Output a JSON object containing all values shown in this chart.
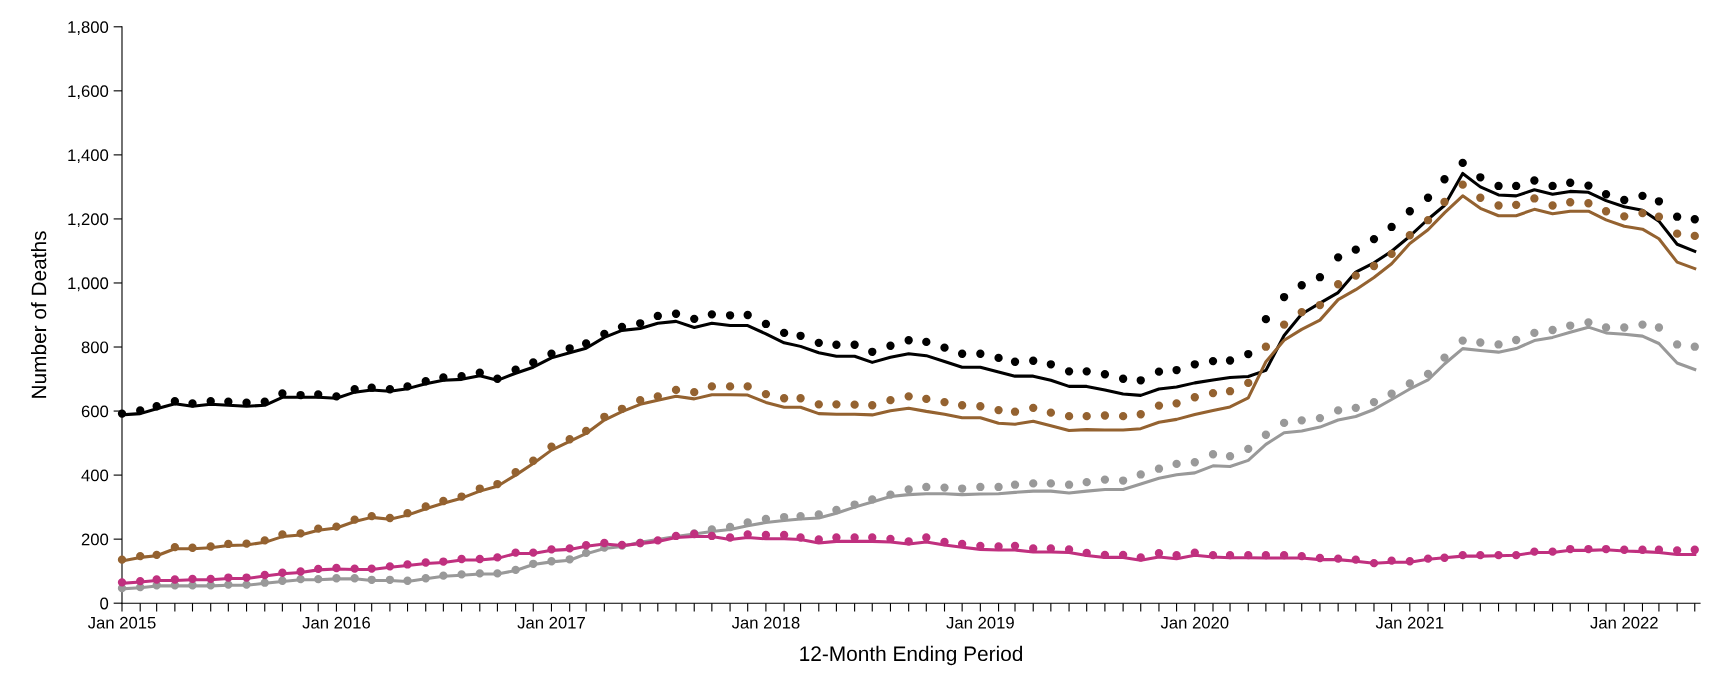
{
  "chart_data": {
    "type": "line",
    "xlabel": "12-Month Ending Period",
    "ylabel": "Number of Deaths",
    "x": [
      "2015-01",
      "2015-02",
      "2015-03",
      "2015-04",
      "2015-05",
      "2015-06",
      "2015-07",
      "2015-08",
      "2015-09",
      "2015-10",
      "2015-11",
      "2015-12",
      "2016-01",
      "2016-02",
      "2016-03",
      "2016-04",
      "2016-05",
      "2016-06",
      "2016-07",
      "2016-08",
      "2016-09",
      "2016-10",
      "2016-11",
      "2016-12",
      "2017-01",
      "2017-02",
      "2017-03",
      "2017-04",
      "2017-05",
      "2017-06",
      "2017-07",
      "2017-08",
      "2017-09",
      "2017-10",
      "2017-11",
      "2017-12",
      "2018-01",
      "2018-02",
      "2018-03",
      "2018-04",
      "2018-05",
      "2018-06",
      "2018-07",
      "2018-08",
      "2018-09",
      "2018-10",
      "2018-11",
      "2018-12",
      "2019-01",
      "2019-02",
      "2019-03",
      "2019-04",
      "2019-05",
      "2019-06",
      "2019-07",
      "2019-08",
      "2019-09",
      "2019-10",
      "2019-11",
      "2019-12",
      "2020-01",
      "2020-02",
      "2020-03",
      "2020-04",
      "2020-05",
      "2020-06",
      "2020-07",
      "2020-08",
      "2020-09",
      "2020-10",
      "2020-11",
      "2020-12",
      "2021-01",
      "2021-02",
      "2021-03",
      "2021-04",
      "2021-05",
      "2021-06",
      "2021-07",
      "2021-08",
      "2021-09",
      "2021-10",
      "2021-11",
      "2021-12",
      "2022-01",
      "2022-02",
      "2022-03",
      "2022-04",
      "2022-05"
    ],
    "series": [
      {
        "color": "#000000",
        "line_style": "solid",
        "values": [
          588,
          592,
          607,
          623,
          615,
          621,
          618,
          615,
          618,
          643,
          643,
          643,
          640,
          659,
          666,
          662,
          670,
          685,
          696,
          699,
          710,
          696,
          718,
          737,
          766,
          782,
          796,
          830,
          852,
          858,
          874,
          880,
          861,
          874,
          867,
          867,
          841,
          813,
          802,
          782,
          771,
          771,
          752,
          768,
          779,
          773,
          755,
          737,
          737,
          722,
          709,
          709,
          696,
          677,
          677,
          666,
          653,
          649,
          669,
          675,
          688,
          697,
          705,
          708,
          727,
          836,
          903,
          937,
          970,
          1034,
          1063,
          1099,
          1146,
          1199,
          1242,
          1342,
          1300,
          1275,
          1272,
          1291,
          1277,
          1286,
          1283,
          1257,
          1238,
          1227,
          1193,
          1121,
          1099
        ]
      },
      {
        "color": "#946230",
        "line_style": "solid",
        "values": [
          132,
          143,
          148,
          170,
          170,
          173,
          180,
          182,
          190,
          208,
          213,
          228,
          235,
          255,
          268,
          262,
          275,
          295,
          312,
          328,
          350,
          365,
          400,
          436,
          478,
          505,
          530,
          572,
          598,
          621,
          634,
          646,
          638,
          651,
          651,
          650,
          627,
          612,
          612,
          592,
          590,
          590,
          588,
          601,
          609,
          599,
          590,
          579,
          579,
          562,
          559,
          568,
          554,
          539,
          542,
          541,
          541,
          545,
          565,
          574,
          589,
          602,
          613,
          641,
          754,
          821,
          855,
          884,
          948,
          979,
          1017,
          1060,
          1123,
          1166,
          1219,
          1272,
          1233,
          1210,
          1210,
          1230,
          1216,
          1224,
          1224,
          1197,
          1177,
          1168,
          1138,
          1065,
          1045
        ]
      },
      {
        "color": "#999999",
        "line_style": "solid",
        "values": [
          45,
          48,
          54,
          54,
          54,
          54,
          56,
          56,
          62,
          68,
          73,
          73,
          76,
          76,
          71,
          71,
          68,
          76,
          84,
          87,
          91,
          91,
          102,
          121,
          129,
          134,
          154,
          171,
          177,
          190,
          199,
          208,
          216,
          224,
          230,
          242,
          252,
          258,
          263,
          266,
          281,
          300,
          316,
          333,
          339,
          342,
          342,
          339,
          341,
          342,
          346,
          350,
          350,
          344,
          350,
          355,
          355,
          372,
          390,
          401,
          407,
          429,
          427,
          446,
          496,
          532,
          538,
          550,
          572,
          583,
          605,
          636,
          669,
          697,
          747,
          795,
          789,
          784,
          795,
          820,
          830,
          846,
          862,
          844,
          840,
          834,
          811,
          750,
          730
        ]
      },
      {
        "color": "#c0307f",
        "line_style": "solid",
        "values": [
          62,
          66,
          71,
          71,
          73,
          73,
          77,
          77,
          85,
          92,
          96,
          104,
          107,
          105,
          105,
          112,
          118,
          124,
          127,
          135,
          135,
          140,
          155,
          155,
          165,
          168,
          178,
          185,
          180,
          186,
          193,
          205,
          208,
          208,
          199,
          205,
          201,
          201,
          199,
          188,
          193,
          193,
          193,
          191,
          185,
          191,
          182,
          175,
          168,
          166,
          166,
          160,
          160,
          158,
          149,
          143,
          143,
          134,
          144,
          139,
          150,
          144,
          142,
          142,
          141,
          141,
          141,
          136,
          136,
          131,
          125,
          128,
          128,
          137,
          142,
          147,
          147,
          148,
          150,
          158,
          158,
          165,
          165,
          167,
          163,
          161,
          158,
          152,
          152
        ]
      },
      {
        "type": "scatter",
        "color": "#000000",
        "marker": "circle",
        "values": [
          592,
          602,
          615,
          631,
          624,
          631,
          629,
          626,
          629,
          655,
          650,
          652,
          646,
          668,
          673,
          668,
          677,
          693,
          705,
          709,
          720,
          701,
          729,
          752,
          779,
          796,
          811,
          841,
          863,
          874,
          897,
          904,
          888,
          902,
          899,
          900,
          872,
          844,
          835,
          813,
          807,
          807,
          785,
          804,
          821,
          816,
          798,
          779,
          779,
          766,
          754,
          757,
          746,
          724,
          724,
          715,
          701,
          696,
          723,
          728,
          746,
          756,
          758,
          778,
          887,
          956,
          993,
          1018,
          1080,
          1104,
          1137,
          1175,
          1224,
          1266,
          1324,
          1375,
          1330,
          1303,
          1303,
          1320,
          1303,
          1313,
          1304,
          1277,
          1259,
          1272,
          1255,
          1207,
          1199
        ]
      },
      {
        "type": "scatter",
        "color": "#946230",
        "marker": "circle",
        "values": [
          136,
          147,
          151,
          175,
          173,
          177,
          185,
          186,
          196,
          215,
          218,
          233,
          239,
          261,
          272,
          266,
          281,
          302,
          319,
          333,
          358,
          372,
          409,
          445,
          489,
          512,
          538,
          582,
          607,
          634,
          646,
          666,
          659,
          677,
          677,
          677,
          653,
          640,
          640,
          621,
          621,
          620,
          618,
          634,
          646,
          638,
          628,
          618,
          615,
          603,
          598,
          610,
          595,
          584,
          584,
          586,
          584,
          590,
          617,
          624,
          643,
          656,
          662,
          688,
          801,
          870,
          909,
          931,
          996,
          1023,
          1053,
          1091,
          1149,
          1196,
          1253,
          1307,
          1266,
          1242,
          1244,
          1264,
          1242,
          1252,
          1249,
          1224,
          1208,
          1218,
          1207,
          1154,
          1147
        ]
      },
      {
        "type": "scatter",
        "color": "#999999",
        "marker": "circle",
        "values": [
          47,
          50,
          56,
          56,
          56,
          56,
          58,
          58,
          64,
          70,
          75,
          75,
          78,
          78,
          73,
          73,
          70,
          78,
          86,
          90,
          93,
          93,
          104,
          123,
          131,
          137,
          157,
          174,
          180,
          188,
          null,
          null,
          218,
          230,
          238,
          252,
          263,
          269,
          272,
          277,
          291,
          308,
          324,
          339,
          355,
          363,
          361,
          358,
          363,
          363,
          370,
          374,
          374,
          370,
          378,
          386,
          383,
          402,
          420,
          435,
          440,
          465,
          459,
          482,
          526,
          563,
          571,
          578,
          602,
          610,
          628,
          654,
          686,
          716,
          767,
          820,
          814,
          808,
          822,
          844,
          853,
          867,
          877,
          861,
          861,
          870,
          861,
          808,
          801
        ]
      },
      {
        "type": "scatter",
        "color": "#c0307f",
        "marker": "circle",
        "values": [
          65,
          69,
          74,
          74,
          76,
          76,
          80,
          80,
          88,
          95,
          99,
          107,
          110,
          108,
          108,
          115,
          121,
          127,
          130,
          138,
          138,
          143,
          158,
          158,
          168,
          171,
          181,
          188,
          182,
          188,
          196,
          210,
          216,
          210,
          205,
          215,
          213,
          213,
          205,
          199,
          205,
          205,
          205,
          201,
          193,
          205,
          191,
          185,
          179,
          177,
          179,
          171,
          171,
          168,
          157,
          151,
          151,
          143,
          156,
          150,
          158,
          150,
          150,
          150,
          150,
          150,
          147,
          141,
          139,
          136,
          125,
          133,
          131,
          139,
          142,
          150,
          150,
          150,
          150,
          161,
          161,
          169,
          169,
          169,
          167,
          167,
          167,
          165,
          167
        ]
      }
    ],
    "xlim": [
      "2015-01",
      "2022-05-10"
    ],
    "xticks": [
      {
        "value": "2015-01",
        "label": "Jan 2015"
      },
      {
        "value": "2015-02",
        "label": null
      },
      {
        "value": "2015-03",
        "label": null
      },
      {
        "value": "2015-04",
        "label": null
      },
      {
        "value": "2015-05",
        "label": null
      },
      {
        "value": "2015-06",
        "label": null
      },
      {
        "value": "2015-07",
        "label": null
      },
      {
        "value": "2015-08",
        "label": null
      },
      {
        "value": "2015-09",
        "label": null
      },
      {
        "value": "2015-10",
        "label": null
      },
      {
        "value": "2015-11",
        "label": null
      },
      {
        "value": "2015-12",
        "label": null
      },
      {
        "value": "2016-01",
        "label": "Jan 2016"
      },
      {
        "value": "2016-02",
        "label": null
      },
      {
        "value": "2016-03",
        "label": null
      },
      {
        "value": "2016-04",
        "label": null
      },
      {
        "value": "2016-05",
        "label": null
      },
      {
        "value": "2016-06",
        "label": null
      },
      {
        "value": "2016-07",
        "label": null
      },
      {
        "value": "2016-08",
        "label": null
      },
      {
        "value": "2016-09",
        "label": null
      },
      {
        "value": "2016-10",
        "label": null
      },
      {
        "value": "2016-11",
        "label": null
      },
      {
        "value": "2016-12",
        "label": null
      },
      {
        "value": "2017-01",
        "label": "Jan 2017"
      },
      {
        "value": "2017-02",
        "label": null
      },
      {
        "value": "2017-03",
        "label": null
      },
      {
        "value": "2017-04",
        "label": null
      },
      {
        "value": "2017-05",
        "label": null
      },
      {
        "value": "2017-06",
        "label": null
      },
      {
        "value": "2017-07",
        "label": null
      },
      {
        "value": "2017-08",
        "label": null
      },
      {
        "value": "2017-09",
        "label": null
      },
      {
        "value": "2017-10",
        "label": null
      },
      {
        "value": "2017-11",
        "label": null
      },
      {
        "value": "2017-12",
        "label": null
      },
      {
        "value": "2018-01",
        "label": "Jan 2018"
      },
      {
        "value": "2018-02",
        "label": null
      },
      {
        "value": "2018-03",
        "label": null
      },
      {
        "value": "2018-04",
        "label": null
      },
      {
        "value": "2018-05",
        "label": null
      },
      {
        "value": "2018-06",
        "label": null
      },
      {
        "value": "2018-07",
        "label": null
      },
      {
        "value": "2018-08",
        "label": null
      },
      {
        "value": "2018-09",
        "label": null
      },
      {
        "value": "2018-10",
        "label": null
      },
      {
        "value": "2018-11",
        "label": null
      },
      {
        "value": "2018-12",
        "label": null
      },
      {
        "value": "2019-01",
        "label": "Jan 2019"
      },
      {
        "value": "2019-02",
        "label": null
      },
      {
        "value": "2019-03",
        "label": null
      },
      {
        "value": "2019-04",
        "label": null
      },
      {
        "value": "2019-05",
        "label": null
      },
      {
        "value": "2019-06",
        "label": null
      },
      {
        "value": "2019-07",
        "label": null
      },
      {
        "value": "2019-08",
        "label": null
      },
      {
        "value": "2019-09",
        "label": null
      },
      {
        "value": "2019-10",
        "label": null
      },
      {
        "value": "2019-11",
        "label": null
      },
      {
        "value": "2019-12",
        "label": null
      },
      {
        "value": "2020-01",
        "label": "Jan 2020"
      },
      {
        "value": "2020-02",
        "label": null
      },
      {
        "value": "2020-03",
        "label": null
      },
      {
        "value": "2020-04",
        "label": null
      },
      {
        "value": "2020-05",
        "label": null
      },
      {
        "value": "2020-06",
        "label": null
      },
      {
        "value": "2020-07",
        "label": null
      },
      {
        "value": "2020-08",
        "label": null
      },
      {
        "value": "2020-09",
        "label": null
      },
      {
        "value": "2020-10",
        "label": null
      },
      {
        "value": "2020-11",
        "label": null
      },
      {
        "value": "2020-12",
        "label": null
      },
      {
        "value": "2021-01",
        "label": "Jan 2021"
      },
      {
        "value": "2021-02",
        "label": null
      },
      {
        "value": "2021-03",
        "label": null
      },
      {
        "value": "2021-04",
        "label": null
      },
      {
        "value": "2021-05",
        "label": null
      },
      {
        "value": "2021-06",
        "label": null
      },
      {
        "value": "2021-07",
        "label": null
      },
      {
        "value": "2021-08",
        "label": null
      },
      {
        "value": "2021-09",
        "label": null
      },
      {
        "value": "2021-10",
        "label": null
      },
      {
        "value": "2021-11",
        "label": null
      },
      {
        "value": "2021-12",
        "label": null
      },
      {
        "value": "2022-01",
        "label": "Jan 2022"
      },
      {
        "value": "2022-02",
        "label": null
      },
      {
        "value": "2022-03",
        "label": null
      },
      {
        "value": "2022-04",
        "label": null
      },
      {
        "value": "2022-05",
        "label": null
      }
    ],
    "ylim": [
      0,
      1800
    ],
    "yticks": [
      0,
      200,
      400,
      600,
      800,
      {
        "value": 1000,
        "label": "1,000"
      },
      {
        "value": 1200,
        "label": "1,200"
      },
      {
        "value": 1400,
        "label": "1,400"
      },
      {
        "value": 1600,
        "label": "1,600"
      },
      {
        "value": 1800,
        "label": "1,800"
      }
    ],
    "grid": false,
    "legend": false
  }
}
